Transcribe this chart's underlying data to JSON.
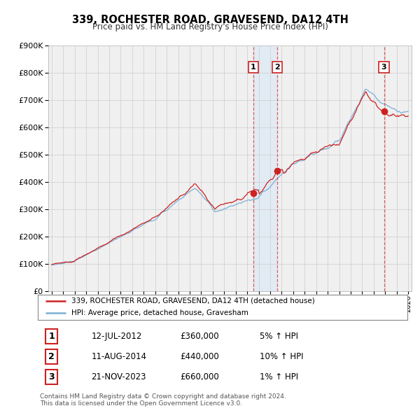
{
  "title": "339, ROCHESTER ROAD, GRAVESEND, DA12 4TH",
  "subtitle": "Price paid vs. HM Land Registry's House Price Index (HPI)",
  "ylim": [
    0,
    900000
  ],
  "yticks": [
    0,
    100000,
    200000,
    300000,
    400000,
    500000,
    600000,
    700000,
    800000,
    900000
  ],
  "xlim_start": 1994.7,
  "xlim_end": 2026.3,
  "sale_dates": [
    2012.54,
    2014.62,
    2023.9
  ],
  "sale_prices": [
    360000,
    440000,
    660000
  ],
  "sale_labels": [
    "1",
    "2",
    "3"
  ],
  "vline_color": "#dd4444",
  "hpi_color": "#7ab0d4",
  "price_color": "#cc2222",
  "legend_entries": [
    "339, ROCHESTER ROAD, GRAVESEND, DA12 4TH (detached house)",
    "HPI: Average price, detached house, Gravesham"
  ],
  "table_data": [
    [
      "1",
      "12-JUL-2012",
      "£360,000",
      "5% ↑ HPI"
    ],
    [
      "2",
      "11-AUG-2014",
      "£440,000",
      "10% ↑ HPI"
    ],
    [
      "3",
      "21-NOV-2023",
      "£660,000",
      "1% ↑ HPI"
    ]
  ],
  "footnote": "Contains HM Land Registry data © Crown copyright and database right 2024.\nThis data is licensed under the Open Government Licence v3.0.",
  "background_color": "#f0f0f0",
  "grid_color": "#cccccc",
  "shade_color": "#d8e8f8"
}
